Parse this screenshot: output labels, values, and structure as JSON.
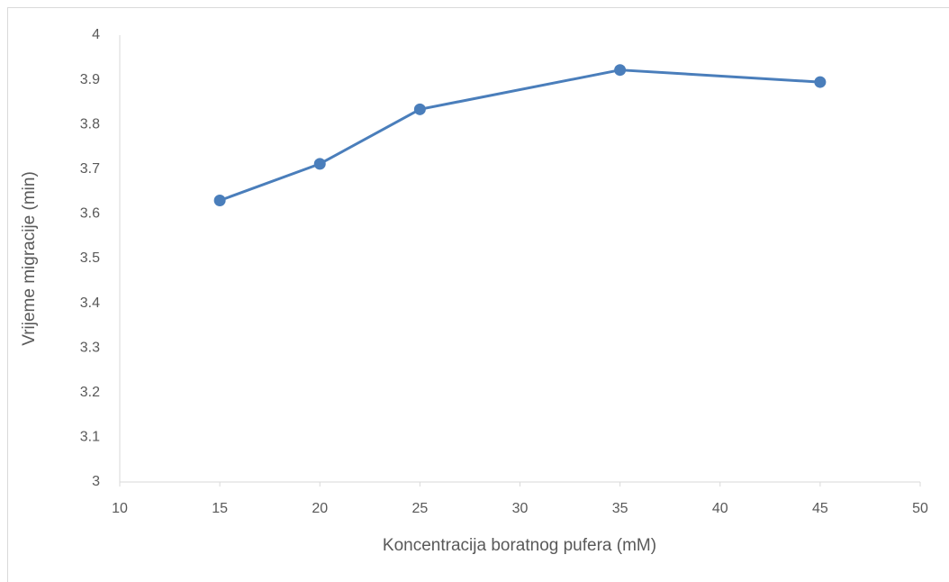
{
  "chart_data": {
    "type": "line",
    "x_label": "Koncentracija boratnog pufera (mM)",
    "y_label": "Vrijeme migracije (min)",
    "x": [
      15,
      20,
      25,
      35,
      45
    ],
    "series": [
      {
        "color": "#4a7ebb",
        "values": [
          3.63,
          3.712,
          3.834,
          3.922,
          3.895
        ]
      }
    ],
    "xlim": [
      10,
      50
    ],
    "xticks": [
      10,
      15,
      20,
      25,
      30,
      35,
      40,
      45,
      50
    ],
    "ylim": [
      3,
      4
    ],
    "yticks": [
      3,
      3.1,
      3.2,
      3.3,
      3.4,
      3.5,
      3.6,
      3.7,
      3.8,
      3.9,
      4
    ],
    "grid": false
  }
}
